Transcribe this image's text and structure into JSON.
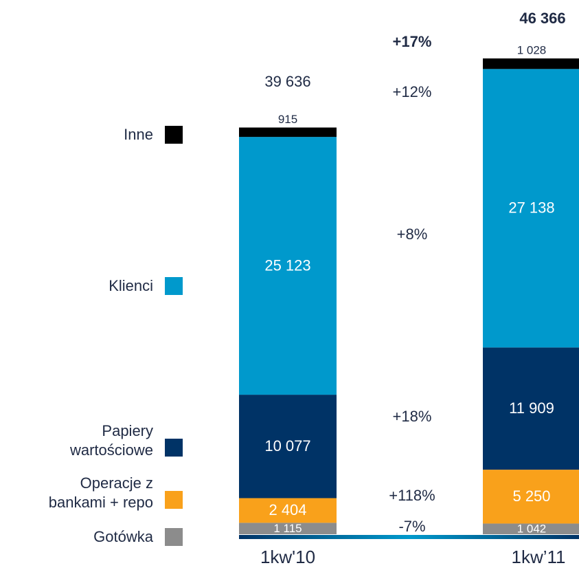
{
  "chart_data": {
    "type": "stacked_bar",
    "categories": [
      "1kw'10",
      "1kw’11"
    ],
    "series": [
      {
        "name": "Gotówka",
        "color": "#8c8c8c",
        "values": [
          1115,
          1042
        ],
        "value_labels": [
          "1 115",
          "1 042"
        ]
      },
      {
        "name": "Operacje z bankami + repo",
        "color": "#f9a11b",
        "values": [
          2404,
          5250
        ],
        "value_labels": [
          "2 404",
          "5 250"
        ]
      },
      {
        "name": "Papiery wartościowe",
        "color": "#003366",
        "values": [
          10077,
          11909
        ],
        "value_labels": [
          "10 077",
          "11 909"
        ]
      },
      {
        "name": "Klienci",
        "color": "#0099cc",
        "values": [
          25123,
          27138
        ],
        "value_labels": [
          "25 123",
          "27 138"
        ]
      },
      {
        "name": "Inne",
        "color": "#000000",
        "values": [
          915,
          1028
        ],
        "value_labels": [
          "915",
          "1 028"
        ]
      }
    ],
    "totals": {
      "values": [
        39636,
        46366
      ],
      "value_labels": [
        "39 636",
        "46 366"
      ]
    },
    "changes": [
      "-7%",
      "+118%",
      "+18%",
      "+8%",
      "+12%",
      "+17%"
    ]
  }
}
